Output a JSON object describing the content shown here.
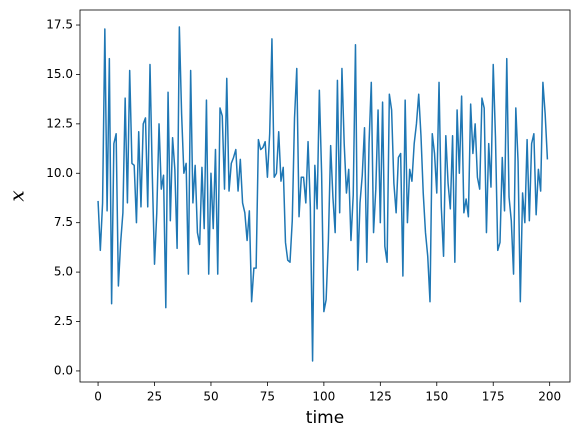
{
  "chart_data": {
    "type": "line",
    "x_label": "time",
    "y_label": "x",
    "x": [
      0,
      1,
      2,
      3,
      4,
      5,
      6,
      7,
      8,
      9,
      10,
      11,
      12,
      13,
      14,
      15,
      16,
      17,
      18,
      19,
      20,
      21,
      22,
      23,
      24,
      25,
      26,
      27,
      28,
      29,
      30,
      31,
      32,
      33,
      34,
      35,
      36,
      37,
      38,
      39,
      40,
      41,
      42,
      43,
      44,
      45,
      46,
      47,
      48,
      49,
      50,
      51,
      52,
      53,
      54,
      55,
      56,
      57,
      58,
      59,
      60,
      61,
      62,
      63,
      64,
      65,
      66,
      67,
      68,
      69,
      70,
      71,
      72,
      73,
      74,
      75,
      76,
      77,
      78,
      79,
      80,
      81,
      82,
      83,
      84,
      85,
      86,
      87,
      88,
      89,
      90,
      91,
      92,
      93,
      94,
      95,
      96,
      97,
      98,
      99,
      100,
      101,
      102,
      103,
      104,
      105,
      106,
      107,
      108,
      109,
      110,
      111,
      112,
      113,
      114,
      115,
      116,
      117,
      118,
      119,
      120,
      121,
      122,
      123,
      124,
      125,
      126,
      127,
      128,
      129,
      130,
      131,
      132,
      133,
      134,
      135,
      136,
      137,
      138,
      139,
      140,
      141,
      142,
      143,
      144,
      145,
      146,
      147,
      148,
      149,
      150,
      151,
      152,
      153,
      154,
      155,
      156,
      157,
      158,
      159,
      160,
      161,
      162,
      163,
      164,
      165,
      166,
      167,
      168,
      169,
      170,
      171,
      172,
      173,
      174,
      175,
      176,
      177,
      178,
      179,
      180,
      181,
      182,
      183,
      184,
      185,
      186,
      187,
      188,
      189,
      190,
      191,
      192,
      193,
      194,
      195,
      196,
      197,
      198,
      199
    ],
    "series": [
      {
        "color": "#1f77b4",
        "values": [
          8.6,
          6.1,
          8.5,
          17.3,
          8.1,
          15.8,
          3.4,
          11.5,
          12.0,
          4.3,
          6.5,
          8.0,
          13.8,
          8.5,
          15.2,
          10.5,
          10.4,
          7.5,
          12.1,
          8.3,
          12.5,
          12.8,
          8.3,
          15.5,
          10.0,
          5.4,
          8.0,
          12.5,
          9.2,
          9.9,
          3.2,
          14.1,
          7.6,
          11.8,
          10.2,
          6.2,
          17.4,
          13.0,
          10.0,
          10.5,
          4.9,
          15.2,
          8.5,
          10.4,
          7.0,
          6.4,
          10.3,
          7.2,
          13.7,
          4.9,
          10.0,
          7.2,
          11.2,
          4.9,
          13.3,
          12.9,
          9.2,
          14.8,
          9.1,
          10.5,
          10.8,
          11.2,
          9.1,
          10.7,
          8.5,
          8.0,
          6.6,
          8.1,
          3.5,
          5.2,
          5.2,
          11.7,
          11.2,
          11.3,
          11.6,
          9.8,
          12.0,
          16.8,
          9.8,
          10.0,
          12.1,
          9.6,
          10.3,
          6.5,
          5.6,
          5.5,
          7.6,
          12.8,
          15.3,
          7.8,
          9.8,
          9.8,
          8.5,
          11.6,
          8.3,
          0.5,
          10.4,
          8.2,
          14.2,
          10.0,
          3.0,
          3.6,
          6.6,
          11.4,
          8.8,
          7.0,
          14.7,
          8.0,
          15.3,
          11.5,
          9.0,
          10.2,
          6.6,
          8.9,
          16.5,
          5.1,
          8.5,
          9.9,
          12.3,
          5.5,
          11.5,
          14.6,
          7.0,
          9.2,
          13.2,
          7.5,
          13.6,
          6.3,
          5.5,
          14.0,
          13.2,
          9.5,
          8.0,
          10.8,
          11.0,
          4.8,
          13.7,
          7.5,
          10.2,
          9.6,
          11.5,
          12.5,
          14.0,
          11.9,
          9.0,
          7.0,
          5.8,
          3.5,
          12.0,
          11.0,
          9.0,
          14.6,
          8.3,
          5.8,
          11.9,
          9.5,
          8.2,
          11.9,
          5.5,
          13.2,
          10.0,
          13.9,
          8.0,
          8.7,
          7.8,
          13.5,
          11.0,
          12.5,
          9.8,
          9.2,
          13.8,
          13.3,
          7.0,
          11.5,
          9.3,
          15.5,
          11.8,
          6.1,
          6.5,
          10.8,
          8.1,
          15.8,
          8.8,
          7.6,
          4.9,
          13.3,
          10.6,
          3.5,
          9.0,
          7.5,
          11.7,
          7.6,
          11.5,
          12.0,
          7.9,
          10.2,
          9.1,
          14.6,
          13.0,
          10.7
        ]
      }
    ],
    "xlim": [
      -8,
      209
    ],
    "ylim": [
      -0.56,
      18.26
    ],
    "xticks": [
      0,
      25,
      50,
      75,
      100,
      125,
      150,
      175,
      200
    ],
    "yticks": [
      {
        "value": 0,
        "label": "0.0"
      },
      2.5,
      {
        "value": 5,
        "label": "5.0"
      },
      7.5,
      {
        "value": 10,
        "label": "10.0"
      },
      12.5,
      {
        "value": 15,
        "label": "15.0"
      },
      17.5
    ]
  }
}
